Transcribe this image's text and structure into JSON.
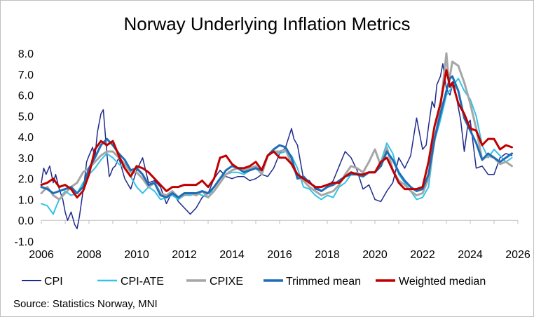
{
  "chart_data": {
    "type": "line",
    "title": "Norway Underlying Inflation Metrics",
    "xlabel": "",
    "ylabel": "",
    "xlim": [
      2006,
      2026
    ],
    "ylim": [
      -1,
      8
    ],
    "x_ticks": [
      "2006",
      "2008",
      "2010",
      "2012",
      "2014",
      "2016",
      "2018",
      "2020",
      "2022",
      "2024",
      "2026"
    ],
    "y_ticks": [
      "-1.0",
      "0.0",
      "1.0",
      "2.0",
      "3.0",
      "4.0",
      "5.0",
      "6.0",
      "7.0",
      "8.0"
    ],
    "grid": false,
    "legend_position": "bottom",
    "source": "Source: Statistics Norway, MNI",
    "series": [
      {
        "name": "CPI",
        "color": "#1f2a8c",
        "width": 1.5,
        "x": [
          2006.0,
          2006.1,
          2006.2,
          2006.35,
          2006.5,
          2006.6,
          2006.75,
          2006.9,
          2007.0,
          2007.1,
          2007.25,
          2007.4,
          2007.5,
          2007.6,
          2007.7,
          2007.8,
          2007.9,
          2008.0,
          2008.15,
          2008.25,
          2008.35,
          2008.5,
          2008.6,
          2008.75,
          2008.85,
          2008.9,
          2009.0,
          2009.1,
          2009.25,
          2009.5,
          2009.75,
          2010.0,
          2010.25,
          2010.5,
          2010.75,
          2011.0,
          2011.25,
          2011.5,
          2011.75,
          2012.0,
          2012.25,
          2012.5,
          2012.75,
          2013.0,
          2013.25,
          2013.5,
          2013.75,
          2014.0,
          2014.25,
          2014.5,
          2014.75,
          2015.0,
          2015.25,
          2015.5,
          2015.75,
          2016.0,
          2016.25,
          2016.5,
          2016.6,
          2016.75,
          2017.0,
          2017.25,
          2017.5,
          2017.75,
          2018.0,
          2018.25,
          2018.5,
          2018.75,
          2019.0,
          2019.25,
          2019.5,
          2019.75,
          2020.0,
          2020.25,
          2020.5,
          2020.75,
          2021.0,
          2021.25,
          2021.5,
          2021.75,
          2022.0,
          2022.15,
          2022.25,
          2022.4,
          2022.5,
          2022.6,
          2022.75,
          2022.85,
          2023.0,
          2023.15,
          2023.3,
          2023.5,
          2023.6,
          2023.75,
          2023.9,
          2024.0,
          2024.25,
          2024.5,
          2024.75,
          2025.0,
          2025.25,
          2025.5,
          2025.75
        ],
        "y": [
          1.8,
          2.5,
          2.2,
          2.6,
          1.8,
          2.2,
          1.5,
          1.0,
          0.4,
          0.0,
          0.4,
          -0.2,
          -0.4,
          0.2,
          1.0,
          1.8,
          2.8,
          3.1,
          3.5,
          3.0,
          4.2,
          5.1,
          5.3,
          3.2,
          2.1,
          2.2,
          2.5,
          2.6,
          3.0,
          2.0,
          1.5,
          2.4,
          3.0,
          1.8,
          1.9,
          1.6,
          0.8,
          1.4,
          0.9,
          0.6,
          0.3,
          0.6,
          1.1,
          1.3,
          2.0,
          2.4,
          2.1,
          2.0,
          2.1,
          2.1,
          1.9,
          2.0,
          2.2,
          2.1,
          2.5,
          3.2,
          3.5,
          4.4,
          3.9,
          3.6,
          2.0,
          1.9,
          1.5,
          1.4,
          1.6,
          1.9,
          2.6,
          3.3,
          3.0,
          2.4,
          1.5,
          1.7,
          1.0,
          0.9,
          1.4,
          1.8,
          3.0,
          2.5,
          3.1,
          4.9,
          3.4,
          3.6,
          4.5,
          5.7,
          5.4,
          6.5,
          6.9,
          7.5,
          6.3,
          6.0,
          6.7,
          5.4,
          4.8,
          3.3,
          4.6,
          4.8,
          2.5,
          2.6,
          2.2,
          2.2,
          3.0,
          3.2,
          3.1
        ]
      },
      {
        "name": "CPI-ATE",
        "color": "#33c3e8",
        "width": 2,
        "x": [
          2006.0,
          2006.25,
          2006.5,
          2006.6,
          2006.75,
          2007.0,
          2007.25,
          2007.5,
          2007.75,
          2008.0,
          2008.25,
          2008.5,
          2008.75,
          2009.0,
          2009.25,
          2009.5,
          2009.75,
          2010.0,
          2010.25,
          2010.5,
          2010.75,
          2011.0,
          2011.25,
          2011.5,
          2011.75,
          2012.0,
          2012.25,
          2012.5,
          2012.75,
          2013.0,
          2013.25,
          2013.5,
          2013.75,
          2014.0,
          2014.25,
          2014.5,
          2014.75,
          2015.0,
          2015.25,
          2015.5,
          2015.75,
          2016.0,
          2016.25,
          2016.5,
          2016.75,
          2017.0,
          2017.25,
          2017.5,
          2017.75,
          2018.0,
          2018.25,
          2018.5,
          2018.75,
          2019.0,
          2019.25,
          2019.5,
          2019.75,
          2020.0,
          2020.25,
          2020.5,
          2020.75,
          2021.0,
          2021.25,
          2021.5,
          2021.75,
          2022.0,
          2022.25,
          2022.5,
          2022.75,
          2023.0,
          2023.25,
          2023.5,
          2023.75,
          2024.0,
          2024.25,
          2024.5,
          2024.75,
          2025.0,
          2025.25,
          2025.5,
          2025.75
        ],
        "y": [
          0.8,
          0.7,
          0.3,
          0.6,
          1.0,
          1.4,
          1.2,
          1.3,
          1.8,
          2.2,
          2.5,
          2.9,
          3.2,
          3.0,
          2.7,
          2.5,
          2.1,
          1.6,
          1.3,
          1.6,
          1.4,
          1.0,
          1.1,
          1.2,
          1.0,
          1.2,
          1.2,
          1.3,
          1.2,
          1.1,
          1.6,
          2.0,
          2.2,
          2.3,
          2.3,
          2.2,
          2.4,
          2.5,
          2.2,
          3.1,
          3.3,
          3.2,
          3.3,
          3.1,
          2.5,
          1.6,
          1.5,
          1.2,
          1.0,
          1.2,
          1.1,
          1.6,
          1.8,
          2.2,
          2.3,
          2.1,
          2.3,
          2.3,
          2.8,
          3.7,
          3.2,
          2.2,
          1.8,
          1.4,
          1.0,
          1.1,
          1.6,
          3.8,
          4.8,
          6.0,
          6.4,
          6.8,
          6.2,
          5.8,
          5.0,
          3.6,
          3.0,
          3.4,
          3.1,
          2.8,
          3.0
        ]
      },
      {
        "name": "CPIXE",
        "color": "#a6a6a6",
        "width": 3,
        "x": [
          2006.0,
          2006.25,
          2006.5,
          2006.75,
          2007.0,
          2007.25,
          2007.5,
          2007.75,
          2008.0,
          2008.25,
          2008.5,
          2008.75,
          2009.0,
          2009.25,
          2009.5,
          2009.75,
          2010.0,
          2010.25,
          2010.5,
          2010.75,
          2011.0,
          2011.25,
          2011.5,
          2011.75,
          2012.0,
          2012.25,
          2012.5,
          2012.75,
          2013.0,
          2013.25,
          2013.5,
          2013.75,
          2014.0,
          2014.25,
          2014.5,
          2014.75,
          2015.0,
          2015.25,
          2015.5,
          2015.75,
          2016.0,
          2016.25,
          2016.5,
          2016.75,
          2017.0,
          2017.25,
          2017.5,
          2017.75,
          2018.0,
          2018.25,
          2018.5,
          2018.75,
          2019.0,
          2019.25,
          2019.5,
          2019.75,
          2020.0,
          2020.25,
          2020.5,
          2020.75,
          2021.0,
          2021.25,
          2021.5,
          2021.75,
          2022.0,
          2022.25,
          2022.5,
          2022.75,
          2023.0,
          2023.1,
          2023.25,
          2023.5,
          2023.75,
          2024.0,
          2024.25,
          2024.5,
          2024.75,
          2025.0,
          2025.25,
          2025.5,
          2025.75
        ],
        "y": [
          1.3,
          1.6,
          1.2,
          1.0,
          1.3,
          1.6,
          1.8,
          2.3,
          2.5,
          2.8,
          3.1,
          3.3,
          3.3,
          3.0,
          2.7,
          2.3,
          2.3,
          2.0,
          1.6,
          1.8,
          1.3,
          1.2,
          1.4,
          1.1,
          1.2,
          1.3,
          1.2,
          1.4,
          1.1,
          1.4,
          1.8,
          2.2,
          2.4,
          2.5,
          2.4,
          2.5,
          2.6,
          2.2,
          3.1,
          3.3,
          3.3,
          3.4,
          2.7,
          2.1,
          1.9,
          1.6,
          1.4,
          1.2,
          1.3,
          1.4,
          1.7,
          2.2,
          2.6,
          2.5,
          2.3,
          2.8,
          3.4,
          2.6,
          3.5,
          2.4,
          1.9,
          1.7,
          1.4,
          1.2,
          1.3,
          2.0,
          3.8,
          5.4,
          8.0,
          6.6,
          7.6,
          7.4,
          6.6,
          5.6,
          4.4,
          2.9,
          3.1,
          3.0,
          2.7,
          2.8,
          2.6
        ]
      },
      {
        "name": "Trimmed mean",
        "color": "#1f6eb5",
        "width": 3,
        "x": [
          2006.0,
          2006.25,
          2006.5,
          2006.75,
          2007.0,
          2007.25,
          2007.5,
          2007.75,
          2008.0,
          2008.25,
          2008.5,
          2008.75,
          2009.0,
          2009.25,
          2009.5,
          2009.75,
          2010.0,
          2010.25,
          2010.5,
          2010.75,
          2011.0,
          2011.25,
          2011.5,
          2011.75,
          2012.0,
          2012.25,
          2012.5,
          2012.75,
          2013.0,
          2013.25,
          2013.5,
          2013.75,
          2014.0,
          2014.25,
          2014.5,
          2014.75,
          2015.0,
          2015.25,
          2015.5,
          2015.75,
          2016.0,
          2016.25,
          2016.5,
          2016.75,
          2017.0,
          2017.25,
          2017.5,
          2017.75,
          2018.0,
          2018.25,
          2018.5,
          2018.75,
          2019.0,
          2019.25,
          2019.5,
          2019.75,
          2020.0,
          2020.25,
          2020.5,
          2020.75,
          2021.0,
          2021.25,
          2021.5,
          2021.75,
          2022.0,
          2022.25,
          2022.5,
          2022.75,
          2023.0,
          2023.15,
          2023.25,
          2023.5,
          2023.75,
          2024.0,
          2024.25,
          2024.5,
          2024.75,
          2025.0,
          2025.25,
          2025.5,
          2025.75
        ],
        "y": [
          1.6,
          1.5,
          1.3,
          1.4,
          1.5,
          1.6,
          1.3,
          1.6,
          2.5,
          3.0,
          3.6,
          3.9,
          3.6,
          3.2,
          2.9,
          2.4,
          2.5,
          2.2,
          1.7,
          1.8,
          1.2,
          1.1,
          1.3,
          1.1,
          1.3,
          1.3,
          1.3,
          1.4,
          1.3,
          1.6,
          2.0,
          2.4,
          2.6,
          2.5,
          2.3,
          2.4,
          2.5,
          2.4,
          3.1,
          3.4,
          3.6,
          3.5,
          3.0,
          2.0,
          2.1,
          1.8,
          1.6,
          1.4,
          1.6,
          1.7,
          1.9,
          2.1,
          2.2,
          2.2,
          2.1,
          2.3,
          2.3,
          2.6,
          3.3,
          2.9,
          2.3,
          1.9,
          1.6,
          1.4,
          1.5,
          2.2,
          3.9,
          5.1,
          6.2,
          6.8,
          6.9,
          6.2,
          4.9,
          4.3,
          3.7,
          2.9,
          3.2,
          3.0,
          2.8,
          3.0,
          3.2
        ]
      },
      {
        "name": "Weighted median",
        "color": "#c00000",
        "width": 3,
        "x": [
          2006.0,
          2006.25,
          2006.5,
          2006.75,
          2007.0,
          2007.25,
          2007.5,
          2007.75,
          2008.0,
          2008.25,
          2008.5,
          2008.75,
          2009.0,
          2009.25,
          2009.5,
          2009.75,
          2010.0,
          2010.25,
          2010.5,
          2010.75,
          2011.0,
          2011.25,
          2011.5,
          2011.75,
          2012.0,
          2012.25,
          2012.5,
          2012.75,
          2013.0,
          2013.25,
          2013.5,
          2013.75,
          2014.0,
          2014.25,
          2014.5,
          2014.75,
          2015.0,
          2015.25,
          2015.5,
          2015.75,
          2016.0,
          2016.25,
          2016.5,
          2016.75,
          2017.0,
          2017.25,
          2017.5,
          2017.75,
          2018.0,
          2018.25,
          2018.5,
          2018.75,
          2019.0,
          2019.25,
          2019.5,
          2019.75,
          2020.0,
          2020.25,
          2020.5,
          2020.75,
          2021.0,
          2021.25,
          2021.5,
          2021.75,
          2022.0,
          2022.25,
          2022.5,
          2022.75,
          2023.0,
          2023.15,
          2023.25,
          2023.5,
          2023.75,
          2024.0,
          2024.25,
          2024.5,
          2024.75,
          2025.0,
          2025.25,
          2025.5,
          2025.75
        ],
        "y": [
          1.7,
          1.8,
          2.0,
          1.6,
          1.7,
          1.5,
          1.1,
          1.4,
          2.2,
          3.4,
          3.8,
          3.6,
          3.8,
          3.1,
          2.5,
          2.1,
          2.6,
          2.5,
          2.3,
          2.0,
          1.7,
          1.4,
          1.6,
          1.6,
          1.7,
          1.7,
          1.7,
          1.9,
          1.6,
          2.0,
          3.0,
          3.1,
          2.7,
          2.5,
          2.5,
          2.6,
          2.8,
          2.4,
          3.1,
          3.3,
          3.0,
          3.0,
          2.7,
          2.2,
          2.0,
          1.8,
          1.6,
          1.6,
          1.7,
          1.8,
          1.8,
          2.1,
          2.3,
          2.2,
          2.2,
          2.3,
          2.3,
          2.8,
          3.0,
          2.4,
          1.8,
          1.5,
          1.5,
          1.5,
          1.6,
          2.8,
          4.5,
          5.6,
          7.2,
          6.4,
          6.6,
          5.6,
          5.1,
          4.4,
          4.3,
          3.6,
          3.9,
          3.9,
          3.4,
          3.6,
          3.5
        ]
      }
    ]
  }
}
